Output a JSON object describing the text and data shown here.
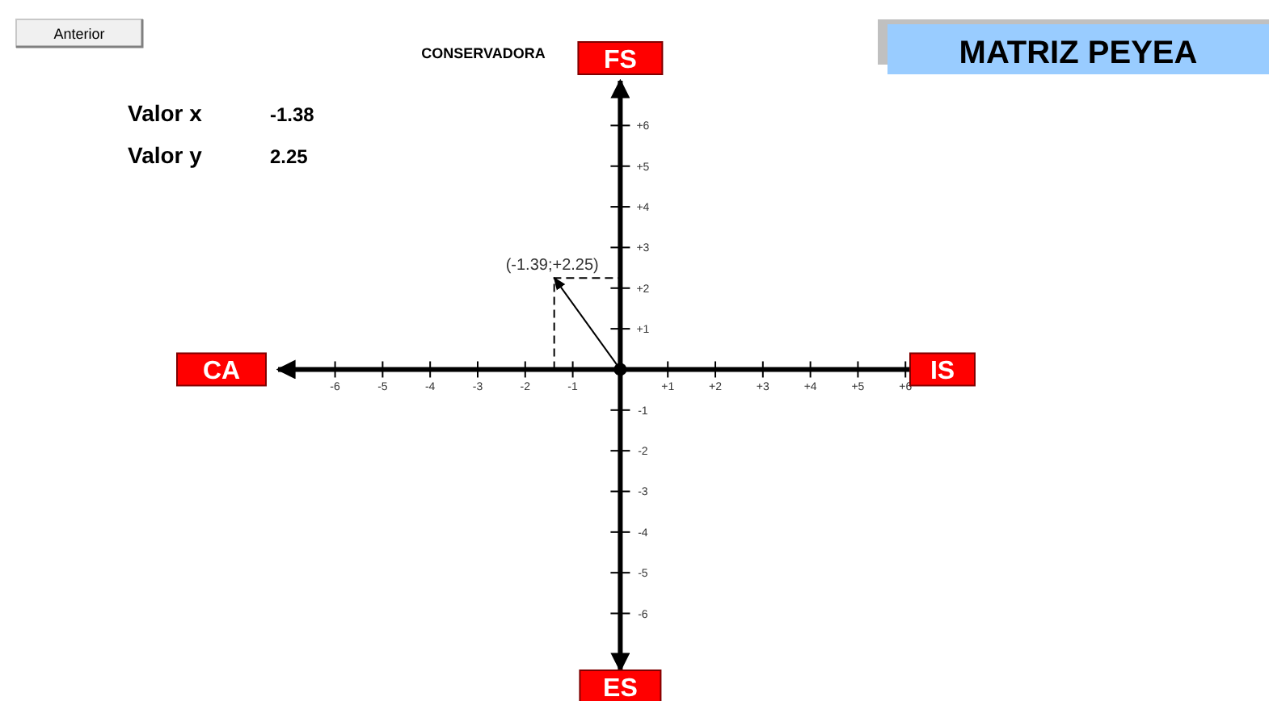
{
  "chart_data": {
    "type": "line",
    "title": "MATRIZ PEYEA",
    "x": [
      0,
      -1.39
    ],
    "series": [
      {
        "color": "#000000",
        "values": [
          0,
          2.25
        ]
      }
    ],
    "xlim": [
      -7.2,
      6.2
    ],
    "ylim": [
      -7.4,
      7.1
    ],
    "xticks": [
      -6,
      -5,
      -4,
      -3,
      -2,
      -1,
      {
        "value": 1,
        "label": "+1"
      },
      {
        "value": 2,
        "label": "+2"
      },
      {
        "value": 3,
        "label": "+3"
      },
      {
        "value": 4,
        "label": "+4"
      },
      {
        "value": 5,
        "label": "+5"
      },
      {
        "value": 6,
        "label": "+6"
      }
    ],
    "yticks": [
      -6,
      -5,
      -4,
      -3,
      -2,
      -1,
      {
        "value": 1,
        "label": "+1"
      },
      {
        "value": 2,
        "label": "+2"
      },
      {
        "value": 3,
        "label": "+3"
      },
      {
        "value": 4,
        "label": "+4"
      },
      {
        "value": 5,
        "label": "+5"
      },
      {
        "value": 6,
        "label": "+6"
      }
    ],
    "grid": false,
    "annotations": [
      "Anterior",
      "CONSERVADORA",
      "Valor x",
      "-1.38",
      "Valor y",
      "2.25",
      "FS",
      "CA",
      "IS",
      "ES",
      {
        "text": "(-1.39;+2.25)",
        "x": -1.39,
        "y": 2.25
      }
    ]
  }
}
